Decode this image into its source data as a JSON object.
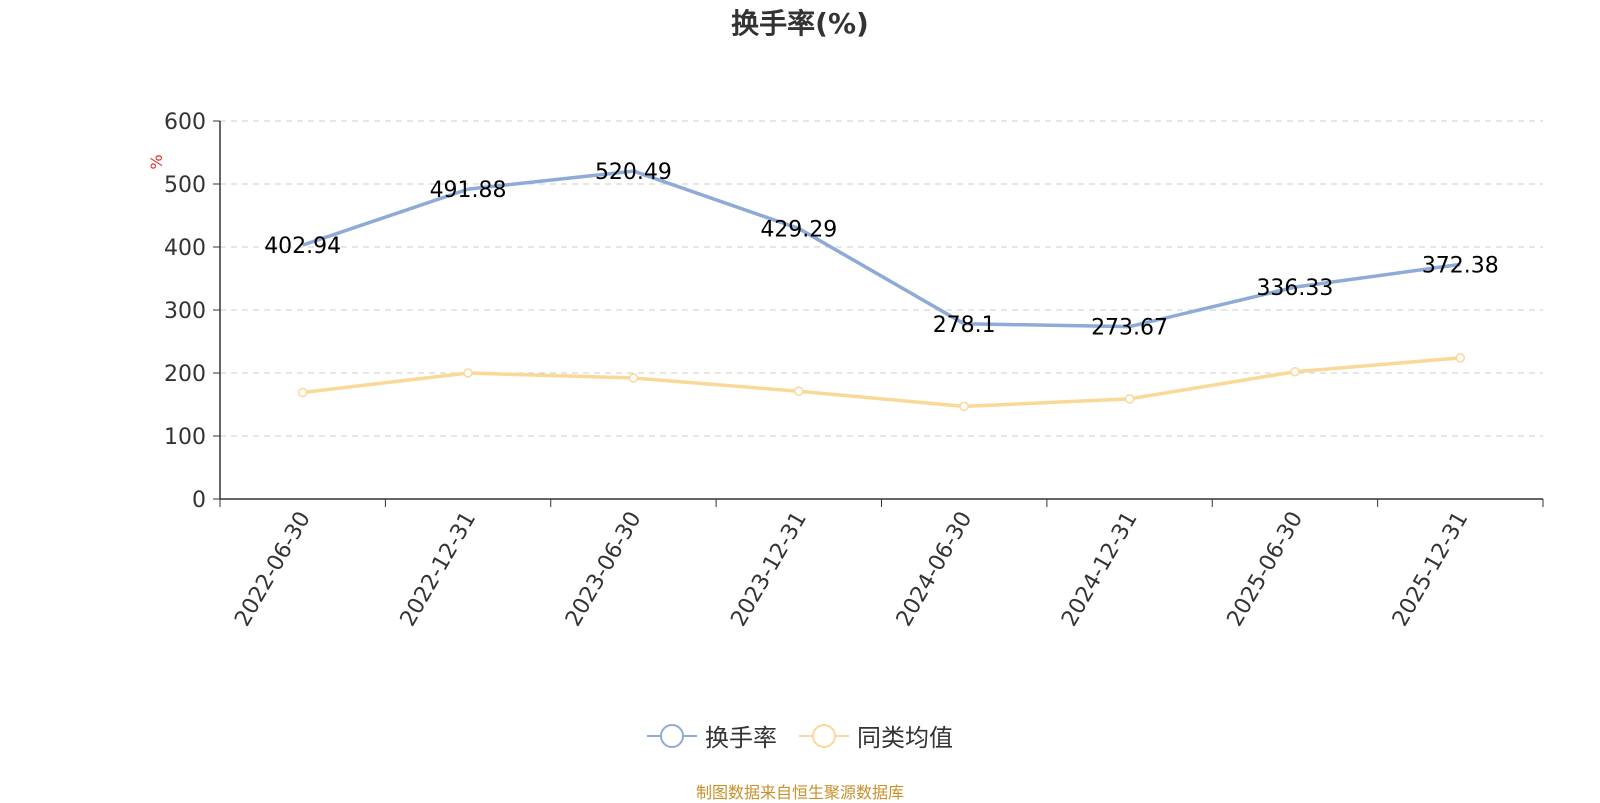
{
  "chart_data": {
    "type": "line",
    "title": "换手率(%)",
    "ylabel": "%",
    "ylim": [
      0,
      600
    ],
    "yticks": [
      "0",
      "100",
      "200",
      "300",
      "400",
      "500",
      "600"
    ],
    "categories": [
      "2022-06-30",
      "2022-12-31",
      "2023-06-30",
      "2023-12-31",
      "2024-06-30",
      "2024-12-31",
      "2025-06-30",
      "2025-12-31"
    ],
    "series": [
      {
        "name": "换手率",
        "color": "#8eaad6",
        "values": [
          402.94,
          491.88,
          520.49,
          429.29,
          278.1,
          273.67,
          336.33,
          372.38
        ],
        "labels": [
          "402.94",
          "491.88",
          "520.49",
          "429.29",
          "278.1",
          "273.67",
          "336.33",
          "372.38"
        ]
      },
      {
        "name": "同类均值",
        "color": "#fad897",
        "values": [
          169,
          200,
          192,
          171,
          147,
          159,
          202,
          224
        ]
      }
    ],
    "grid": true,
    "legend_position": "bottom"
  },
  "footer": {
    "source": "制图数据来自恒生聚源数据库"
  }
}
